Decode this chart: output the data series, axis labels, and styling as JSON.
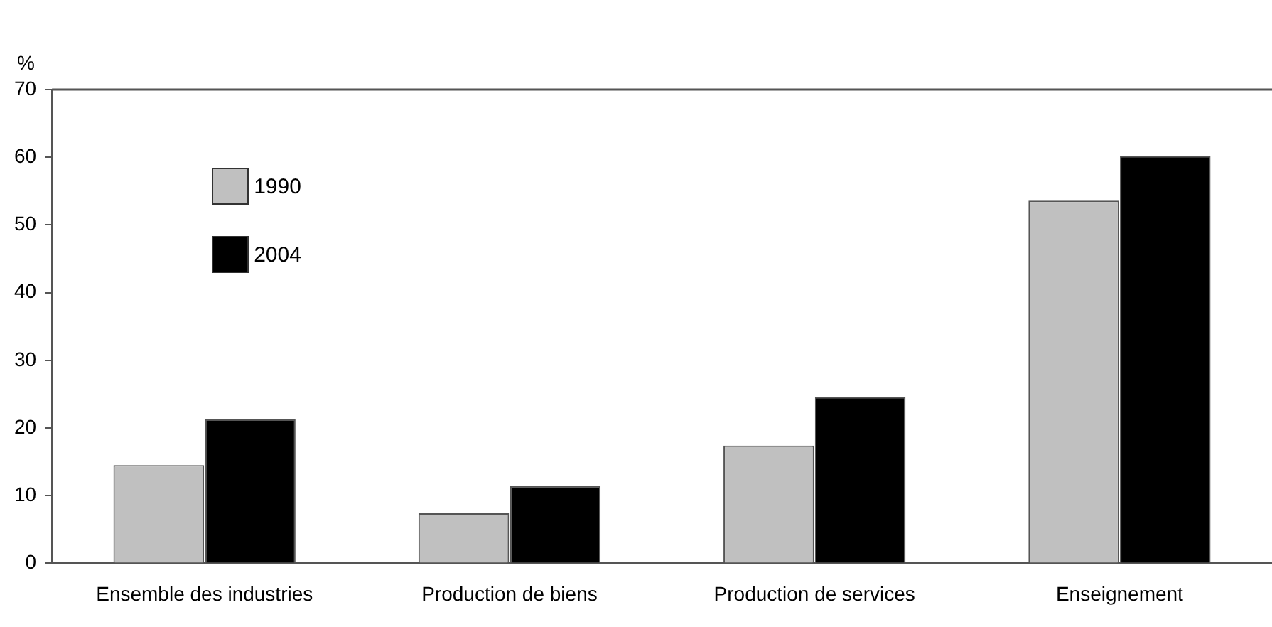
{
  "chart_data": {
    "type": "bar",
    "ylabel": "%",
    "categories": [
      "Ensemble des industries",
      "Production de biens",
      "Production de services",
      "Enseignement"
    ],
    "series": [
      {
        "name": "1990",
        "color": "#c0c0c0",
        "values": [
          14.5,
          7.4,
          17.4,
          53.6
        ]
      },
      {
        "name": "2004",
        "color": "#000000",
        "values": [
          21.3,
          11.4,
          24.6,
          60.2
        ]
      }
    ],
    "ylim": [
      0,
      70
    ],
    "yticks": [
      0,
      10,
      20,
      30,
      40,
      50,
      60,
      70
    ],
    "grid": false,
    "legend": "top left"
  }
}
